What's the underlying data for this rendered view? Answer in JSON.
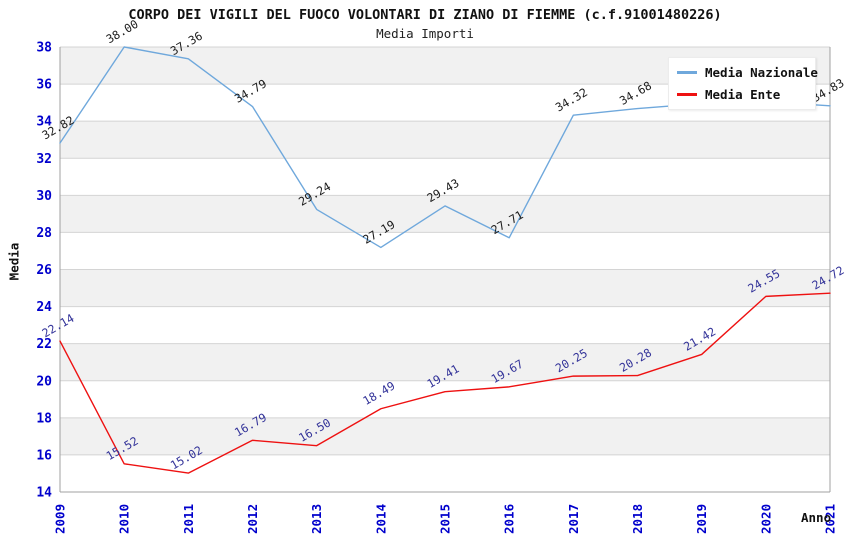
{
  "header": {
    "title": "CORPO DEI VIGILI DEL FUOCO VOLONTARI DI ZIANO DI FIEMME (c.f.91001480226)",
    "subtitle": "Media Importi"
  },
  "chart_data": {
    "type": "line",
    "x": [
      "2009",
      "2010",
      "2011",
      "2012",
      "2013",
      "2014",
      "2015",
      "2016",
      "2017",
      "2018",
      "2019",
      "2020",
      "2021"
    ],
    "xlabel": "Anno",
    "ylabel": "Media",
    "ylim": [
      14,
      38
    ],
    "ytick_step": 2,
    "grid": "horizontal-only",
    "legend_position": "top-right",
    "colors": {
      "band_fill": "#f1f1f1",
      "grid_color": "#d4d4d4",
      "axis_color": "#a0a0a0",
      "tick_label_color": "#0000cc"
    },
    "series": [
      {
        "name": "Media Nazionale",
        "color": "#6fa8dc",
        "label_color": "#1a1a1a",
        "values": [
          32.82,
          38.0,
          37.36,
          34.79,
          29.24,
          27.19,
          29.43,
          27.71,
          34.32,
          34.68,
          34.95,
          35.05,
          34.83
        ],
        "point_labels": [
          "32.82",
          "38.00",
          "37.36",
          "34.79",
          "29.24",
          "27.19",
          "29.43",
          "27.71",
          "34.32",
          "34.68",
          "",
          "",
          "34.83"
        ]
      },
      {
        "name": "Media Ente",
        "color": "#ee1111",
        "label_color": "#333399",
        "values": [
          22.14,
          15.52,
          15.02,
          16.79,
          16.5,
          18.49,
          19.41,
          19.67,
          20.25,
          20.28,
          21.42,
          24.55,
          24.72
        ],
        "point_labels": [
          "22.14",
          "15.52",
          "15.02",
          "16.79",
          "16.50",
          "18.49",
          "19.41",
          "19.67",
          "20.25",
          "20.28",
          "21.42",
          "24.55",
          "24.72"
        ]
      }
    ]
  }
}
